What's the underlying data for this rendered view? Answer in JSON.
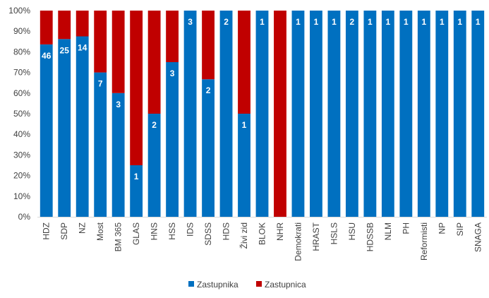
{
  "chart_data": {
    "type": "bar",
    "stacked": "percent",
    "categories": [
      "HDZ",
      "SDP",
      "NZ",
      "Most",
      "BM 365",
      "GLAS",
      "HNS",
      "HSS",
      "IDS",
      "SDSS",
      "HDS",
      "Živi zid",
      "BLOK",
      "NHR",
      "Demokrati",
      "HRAST",
      "HSLS",
      "HSU",
      "HDSSB",
      "NLM",
      "PH",
      "Reformisti",
      "NP",
      "SIP",
      "SNAGA"
    ],
    "series": [
      {
        "name": "Zastupnika",
        "color": "#0070C0",
        "values": [
          83.6,
          86.2,
          87.5,
          70,
          60,
          25,
          50,
          75,
          100,
          66.7,
          100,
          50,
          100,
          0,
          100,
          100,
          100,
          100,
          100,
          100,
          100,
          100,
          100,
          100,
          100
        ],
        "labels": [
          "46",
          "25",
          "14",
          "7",
          "3",
          "1",
          "2",
          "3",
          "3",
          "2",
          "2",
          "1",
          "1",
          "",
          "1",
          "1",
          "1",
          "2",
          "1",
          "1",
          "1",
          "1",
          "1",
          "1",
          "1"
        ]
      },
      {
        "name": "Zastupnica",
        "color": "#C00000",
        "values": [
          16.4,
          13.8,
          12.5,
          30,
          40,
          75,
          50,
          25,
          0,
          33.3,
          0,
          50,
          0,
          100,
          0,
          0,
          0,
          0,
          0,
          0,
          0,
          0,
          0,
          0,
          0
        ]
      }
    ],
    "ylim": [
      0,
      100
    ],
    "yticks": [
      "0%",
      "10%",
      "20%",
      "30%",
      "40%",
      "50%",
      "60%",
      "70%",
      "80%",
      "90%",
      "100%"
    ],
    "legend_position": "bottom"
  }
}
